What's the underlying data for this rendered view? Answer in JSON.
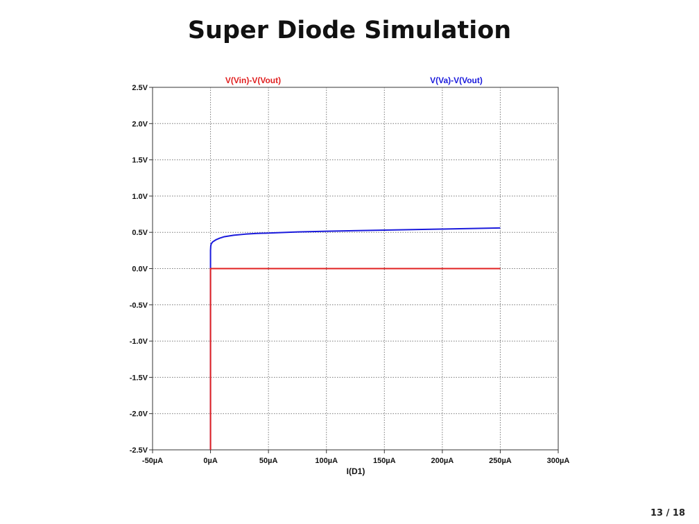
{
  "slide": {
    "title": "Super Diode Simulation",
    "page_number": "13 / 18"
  },
  "chart_data": {
    "type": "line",
    "title": "",
    "xlabel": "I(D1)",
    "ylabel": "",
    "xlim": [
      -50,
      300
    ],
    "ylim": [
      -2.5,
      2.5
    ],
    "x_unit": "µA",
    "y_unit": "V",
    "x_ticks": [
      -50,
      0,
      50,
      100,
      150,
      200,
      250,
      300
    ],
    "x_tick_labels": [
      "-50µA",
      "0µA",
      "50µA",
      "100µA",
      "150µA",
      "200µA",
      "250µA",
      "300µA"
    ],
    "y_ticks": [
      2.5,
      2.0,
      1.5,
      1.0,
      0.5,
      0.0,
      -0.5,
      -1.0,
      -1.5,
      -2.0,
      -2.5
    ],
    "y_tick_labels": [
      "2.5V",
      "2.0V",
      "1.5V",
      "1.0V",
      "0.5V",
      "0.0V",
      "-0.5V",
      "-1.0V",
      "-1.5V",
      "-2.0V",
      "-2.5V"
    ],
    "grid": true,
    "legend_placement": "top",
    "series": [
      {
        "name": "V(Vin)-V(Vout)",
        "color": "#e02020",
        "points": [
          [
            0,
            -2.5
          ],
          [
            0,
            0.0
          ],
          [
            250,
            0.0
          ]
        ]
      },
      {
        "name": "V(Va)-V(Vout)",
        "color": "#1a1adc",
        "points": [
          [
            0,
            -2.5
          ],
          [
            0,
            0.25
          ],
          [
            0.2,
            0.31
          ],
          [
            0.6,
            0.34
          ],
          [
            1,
            0.35
          ],
          [
            2,
            0.37
          ],
          [
            3,
            0.38
          ],
          [
            5,
            0.4
          ],
          [
            8,
            0.42
          ],
          [
            12,
            0.44
          ],
          [
            20,
            0.46
          ],
          [
            30,
            0.475
          ],
          [
            40,
            0.485
          ],
          [
            50,
            0.49
          ],
          [
            75,
            0.505
          ],
          [
            100,
            0.515
          ],
          [
            150,
            0.53
          ],
          [
            200,
            0.545
          ],
          [
            250,
            0.56
          ]
        ]
      }
    ]
  }
}
